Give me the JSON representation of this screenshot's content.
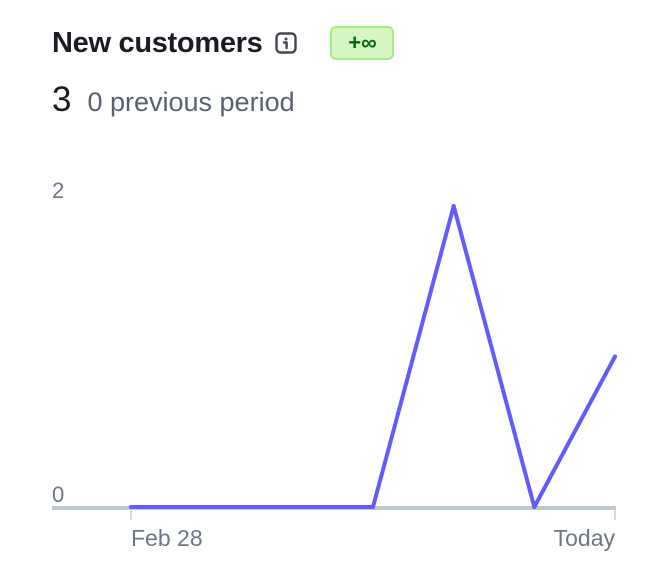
{
  "header": {
    "title": "New customers",
    "info_icon": "info-icon",
    "change_badge": "+∞"
  },
  "summary": {
    "value": "3",
    "previous": "0 previous period"
  },
  "colors": {
    "line": "#635bff",
    "baseline": "#c0c8d2",
    "badge_bg": "#d7f7c2",
    "badge_text": "#05690d"
  },
  "chart_data": {
    "type": "line",
    "x_tick_labels": [
      "Feb 28",
      "Today"
    ],
    "y_tick_labels": [
      "2",
      "0"
    ],
    "ylim": [
      0,
      2
    ],
    "grid": false,
    "legend": "none",
    "series": [
      {
        "values": [
          0,
          0,
          0,
          0,
          2,
          0,
          1
        ]
      }
    ]
  }
}
